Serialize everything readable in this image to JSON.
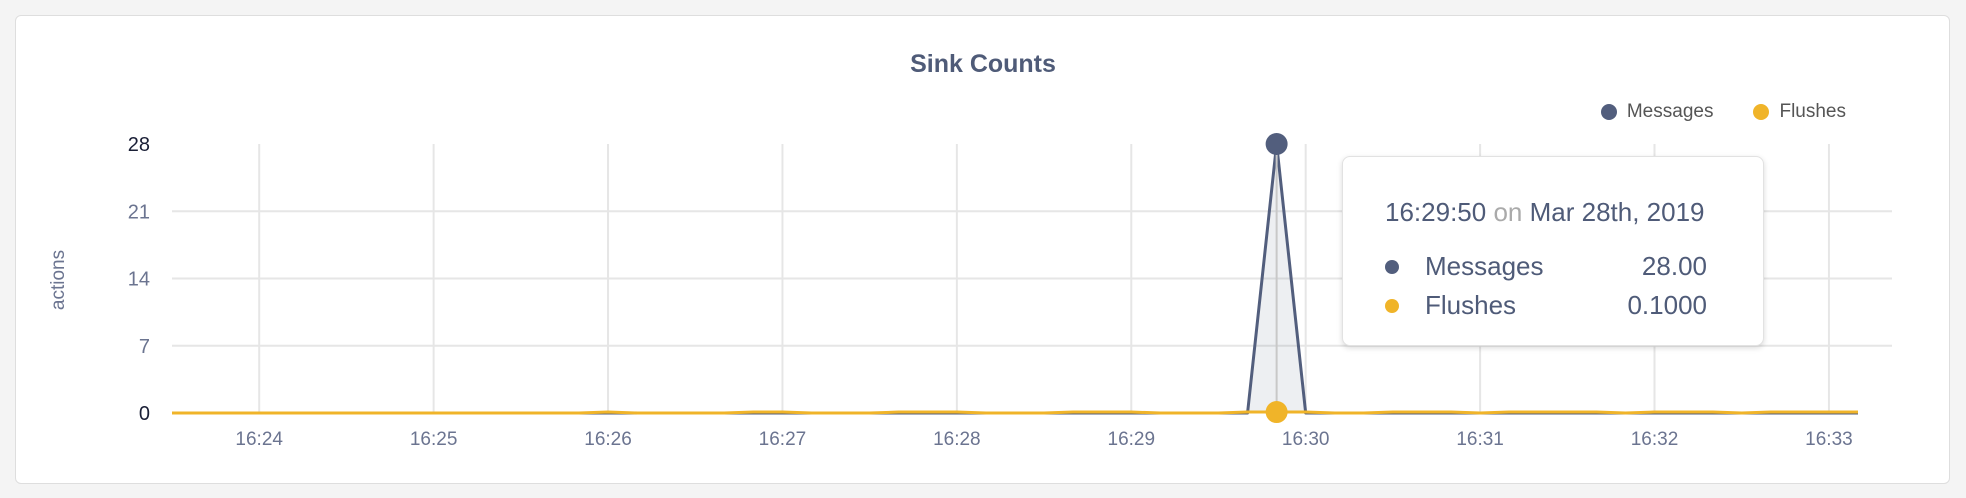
{
  "chart_data": {
    "type": "area",
    "title": "Sink Counts",
    "ylabel": "actions",
    "xlabel": "",
    "ylim": [
      0,
      28
    ],
    "yticks": [
      "0",
      "7",
      "14",
      "21",
      "28"
    ],
    "xticks": [
      "16:24",
      "16:25",
      "16:26",
      "16:27",
      "16:28",
      "16:29",
      "16:30",
      "16:31",
      "16:32",
      "16:33"
    ],
    "xrange": [
      "16:23:30",
      "16:33:10"
    ],
    "grid": true,
    "legend_position": "top-right",
    "x": [
      "16:23:30",
      "16:23:40",
      "16:23:50",
      "16:24:00",
      "16:24:10",
      "16:24:20",
      "16:24:30",
      "16:24:40",
      "16:24:50",
      "16:25:00",
      "16:25:10",
      "16:25:20",
      "16:25:30",
      "16:25:40",
      "16:25:50",
      "16:26:00",
      "16:26:10",
      "16:26:20",
      "16:26:30",
      "16:26:40",
      "16:26:50",
      "16:27:00",
      "16:27:10",
      "16:27:20",
      "16:27:30",
      "16:27:40",
      "16:27:50",
      "16:28:00",
      "16:28:10",
      "16:28:20",
      "16:28:30",
      "16:28:40",
      "16:28:50",
      "16:29:00",
      "16:29:10",
      "16:29:20",
      "16:29:30",
      "16:29:40",
      "16:29:50",
      "16:30:00",
      "16:30:10",
      "16:30:20",
      "16:30:30",
      "16:30:40",
      "16:30:50",
      "16:31:00",
      "16:31:10",
      "16:31:20",
      "16:31:30",
      "16:31:40",
      "16:31:50",
      "16:32:00",
      "16:32:10",
      "16:32:20",
      "16:32:30",
      "16:32:40",
      "16:32:50",
      "16:33:00",
      "16:33:10"
    ],
    "series": [
      {
        "name": "Messages",
        "color": "#525e7d",
        "values": [
          0,
          0,
          0,
          0,
          0,
          0,
          0,
          0,
          0,
          0,
          0,
          0,
          0,
          0,
          0,
          0,
          0,
          0,
          0,
          0,
          0,
          0,
          0,
          0,
          0,
          0,
          0,
          0,
          0,
          0,
          0,
          0,
          0,
          0,
          0,
          0,
          0,
          0,
          28,
          0,
          0,
          0,
          0,
          0,
          0,
          0,
          0,
          0,
          0,
          0,
          0,
          0,
          0,
          0,
          0,
          0,
          0,
          0,
          0
        ]
      },
      {
        "name": "Flushes",
        "color": "#f0b429",
        "values": [
          0,
          0,
          0,
          0,
          0,
          0,
          0,
          0,
          0,
          0,
          0,
          0,
          0,
          0,
          0,
          0.1,
          0,
          0,
          0,
          0,
          0.1,
          0.1,
          0,
          0,
          0,
          0.1,
          0.1,
          0.1,
          0,
          0,
          0,
          0.1,
          0.1,
          0.1,
          0,
          0,
          0,
          0.1,
          0.1,
          0.1,
          0,
          0,
          0.1,
          0.1,
          0.1,
          0,
          0.1,
          0.1,
          0.1,
          0.1,
          0,
          0.1,
          0.1,
          0.1,
          0,
          0.1,
          0.1,
          0.1,
          0.1
        ]
      }
    ]
  },
  "tooltip": {
    "time": "16:29:50",
    "on": "on",
    "date": "Mar 28th, 2019",
    "rows": [
      {
        "name": "Messages",
        "value": "28.00"
      },
      {
        "name": "Flushes",
        "value": "0.1000"
      }
    ]
  }
}
